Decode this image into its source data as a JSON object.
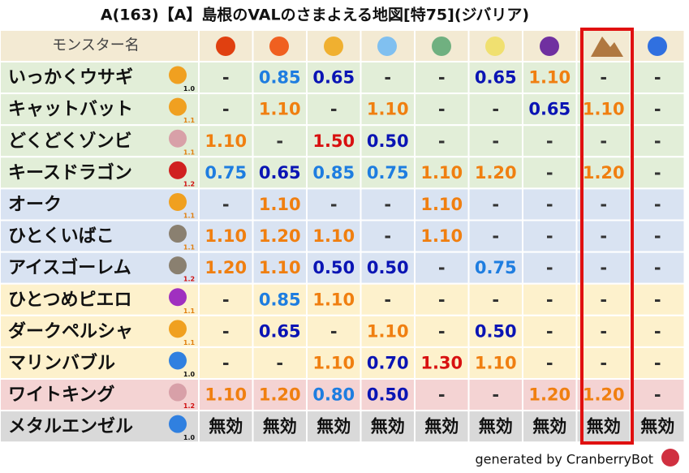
{
  "title": "A(163)【A】島根のVALのさまよえる地図[特75](ジバリア)",
  "header": {
    "label": "モンスター名",
    "background": "#f3ead3"
  },
  "table": {
    "rows": [
      {
        "name": "いっかくウサギ",
        "version": "1.0",
        "version_color": "#111111",
        "icon_color": "#f0a020",
        "background": "#e2eed8",
        "values": [
          "-",
          "0.85",
          "0.65",
          "-",
          "-",
          "0.65",
          "1.10",
          "-",
          "-"
        ],
        "colors": [
          "#333333",
          "#1e7de0",
          "#0a14b4",
          "#333333",
          "#333333",
          "#0a14b4",
          "#f07f10",
          "#333333",
          "#333333"
        ]
      },
      {
        "name": "キャットバット",
        "version": "1.1",
        "version_color": "#e08010",
        "icon_color": "#f0a020",
        "background": "#e2eed8",
        "values": [
          "-",
          "1.10",
          "-",
          "1.10",
          "-",
          "-",
          "0.65",
          "1.10",
          "-"
        ],
        "colors": [
          "#333333",
          "#f07f10",
          "#333333",
          "#f07f10",
          "#333333",
          "#333333",
          "#0a14b4",
          "#f07f10",
          "#333333"
        ]
      },
      {
        "name": "どくどくゾンビ",
        "version": "1.1",
        "version_color": "#e08010",
        "icon_color": "#d8a0a8",
        "background": "#e2eed8",
        "values": [
          "1.10",
          "-",
          "1.50",
          "0.50",
          "-",
          "-",
          "-",
          "-",
          "-"
        ],
        "colors": [
          "#f07f10",
          "#333333",
          "#d81010",
          "#0a14b4",
          "#333333",
          "#333333",
          "#333333",
          "#333333",
          "#333333"
        ]
      },
      {
        "name": "キースドラゴン",
        "version": "1.2",
        "version_color": "#d01010",
        "icon_color": "#d02020",
        "background": "#e2eed8",
        "values": [
          "0.75",
          "0.65",
          "0.85",
          "0.75",
          "1.10",
          "1.20",
          "-",
          "1.20",
          "-"
        ],
        "colors": [
          "#1e7de0",
          "#0a14b4",
          "#1e7de0",
          "#1e7de0",
          "#f07f10",
          "#f07f10",
          "#333333",
          "#f07f10",
          "#333333"
        ]
      },
      {
        "name": "オーク",
        "version": "1.1",
        "version_color": "#e08010",
        "icon_color": "#f0a020",
        "background": "#d9e3f2",
        "values": [
          "-",
          "1.10",
          "-",
          "-",
          "1.10",
          "-",
          "-",
          "-",
          "-"
        ],
        "colors": [
          "#333333",
          "#f07f10",
          "#333333",
          "#333333",
          "#f07f10",
          "#333333",
          "#333333",
          "#333333",
          "#333333"
        ]
      },
      {
        "name": "ひとくいばこ",
        "version": "1.1",
        "version_color": "#e08010",
        "icon_color": "#8a8070",
        "background": "#d9e3f2",
        "values": [
          "1.10",
          "1.20",
          "1.10",
          "-",
          "1.10",
          "-",
          "-",
          "-",
          "-"
        ],
        "colors": [
          "#f07f10",
          "#f07f10",
          "#f07f10",
          "#333333",
          "#f07f10",
          "#333333",
          "#333333",
          "#333333",
          "#333333"
        ]
      },
      {
        "name": "アイスゴーレム",
        "version": "1.2",
        "version_color": "#d01010",
        "icon_color": "#8a8070",
        "background": "#d9e3f2",
        "values": [
          "1.20",
          "1.10",
          "0.50",
          "0.50",
          "-",
          "0.75",
          "-",
          "-",
          "-"
        ],
        "colors": [
          "#f07f10",
          "#f07f10",
          "#0a14b4",
          "#0a14b4",
          "#333333",
          "#1e7de0",
          "#333333",
          "#333333",
          "#333333"
        ]
      },
      {
        "name": "ひとつめピエロ",
        "version": "1.1",
        "version_color": "#e08010",
        "icon_color": "#a030c0",
        "background": "#fdf1cc",
        "values": [
          "-",
          "0.85",
          "1.10",
          "-",
          "-",
          "-",
          "-",
          "-",
          "-"
        ],
        "colors": [
          "#333333",
          "#1e7de0",
          "#f07f10",
          "#333333",
          "#333333",
          "#333333",
          "#333333",
          "#333333",
          "#333333"
        ]
      },
      {
        "name": "ダークペルシャ",
        "version": "1.1",
        "version_color": "#e08010",
        "icon_color": "#f0a020",
        "background": "#fdf1cc",
        "values": [
          "-",
          "0.65",
          "-",
          "1.10",
          "-",
          "0.50",
          "-",
          "-",
          "-"
        ],
        "colors": [
          "#333333",
          "#0a14b4",
          "#333333",
          "#f07f10",
          "#333333",
          "#0a14b4",
          "#333333",
          "#333333",
          "#333333"
        ]
      },
      {
        "name": "マリンバブル",
        "version": "1.0",
        "version_color": "#111111",
        "icon_color": "#3080e0",
        "background": "#fdf1cc",
        "values": [
          "-",
          "-",
          "1.10",
          "0.70",
          "1.30",
          "1.10",
          "-",
          "-",
          "-"
        ],
        "colors": [
          "#333333",
          "#333333",
          "#f07f10",
          "#0a14b4",
          "#d81010",
          "#f07f10",
          "#333333",
          "#333333",
          "#333333"
        ]
      },
      {
        "name": "ワイトキング",
        "version": "1.2",
        "version_color": "#d01010",
        "icon_color": "#d8a0a8",
        "background": "#f4d3d3",
        "values": [
          "1.10",
          "1.20",
          "0.80",
          "0.50",
          "-",
          "-",
          "1.20",
          "1.20",
          "-"
        ],
        "colors": [
          "#f07f10",
          "#f07f10",
          "#1e7de0",
          "#0a14b4",
          "#333333",
          "#333333",
          "#f07f10",
          "#f07f10",
          "#333333"
        ]
      },
      {
        "name": "メタルエンゼル",
        "version": "1.0",
        "version_color": "#111111",
        "icon_color": "#3080e0",
        "background": "#d9d9d9",
        "values": [
          "無効",
          "無効",
          "無効",
          "無効",
          "無効",
          "無効",
          "無効",
          "無効",
          "無効"
        ],
        "colors": [
          "#111111",
          "#111111",
          "#111111",
          "#111111",
          "#111111",
          "#111111",
          "#111111",
          "#111111",
          "#111111"
        ]
      }
    ]
  },
  "footer": "generated by CranberryBot"
}
